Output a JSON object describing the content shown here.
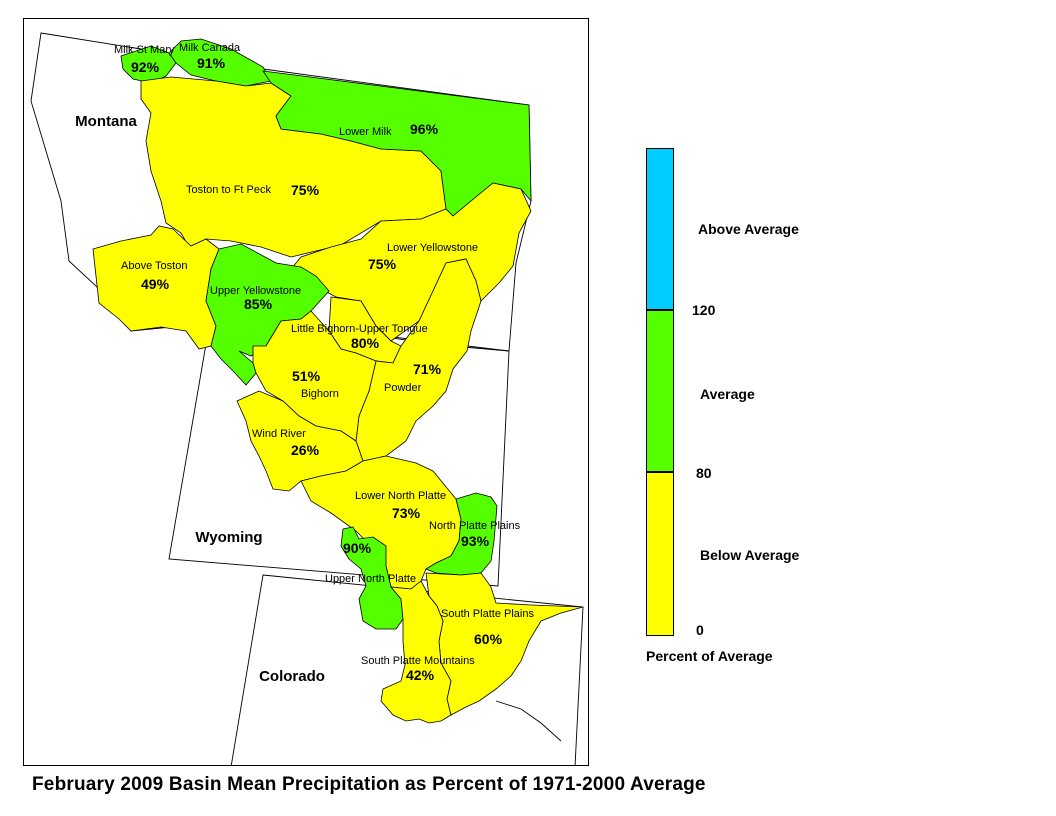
{
  "title": "February 2009 Basin Mean Precipitation as Percent of 1971-2000 Average",
  "colors": {
    "above": "#00CCFF",
    "average": "#55FF00",
    "below": "#FFFF00",
    "outline": "#000000",
    "background": "#FFFFFF"
  },
  "legend": {
    "title": "Percent of Average",
    "classes": [
      {
        "label": "Above Average",
        "min": 120,
        "color": "#00CCFF"
      },
      {
        "label": "Average",
        "min": 80,
        "max": 120,
        "color": "#55FF00"
      },
      {
        "label": "Below Average",
        "min": 0,
        "max": 80,
        "color": "#FFFF00"
      }
    ],
    "breaks": [
      "120",
      "80",
      "0"
    ]
  },
  "states": [
    "Montana",
    "Wyoming",
    "Colorado"
  ],
  "basins": [
    {
      "id": "milk-st-mary",
      "name": "Milk St Mary",
      "pct": "92%",
      "category": "Average"
    },
    {
      "id": "milk-canada",
      "name": "Milk Canada",
      "pct": "91%",
      "category": "Average"
    },
    {
      "id": "lower-milk",
      "name": "Lower Milk",
      "pct": "96%",
      "category": "Average"
    },
    {
      "id": "toston-ft-peck",
      "name": "Toston to Ft Peck",
      "pct": "75%",
      "category": "Below Average"
    },
    {
      "id": "above-toston",
      "name": "Above Toston",
      "pct": "49%",
      "category": "Below Average"
    },
    {
      "id": "upper-yellowstone",
      "name": "Upper Yellowstone",
      "pct": "85%",
      "category": "Average"
    },
    {
      "id": "lower-yellowstone",
      "name": "Lower Yellowstone",
      "pct": "75%",
      "category": "Below Average"
    },
    {
      "id": "little-bighorn",
      "name": "Little Bighorn-Upper Tongue",
      "pct": "80%",
      "category": "Below Average"
    },
    {
      "id": "bighorn",
      "name": "Bighorn",
      "pct": "51%",
      "category": "Below Average"
    },
    {
      "id": "powder",
      "name": "Powder",
      "pct": "71%",
      "category": "Below Average"
    },
    {
      "id": "wind-river",
      "name": "Wind River",
      "pct": "26%",
      "category": "Below Average"
    },
    {
      "id": "lower-north-platte",
      "name": "Lower North Platte",
      "pct": "73%",
      "category": "Below Average"
    },
    {
      "id": "north-platte-plains",
      "name": "North Platte Plains",
      "pct": "93%",
      "category": "Average"
    },
    {
      "id": "upper-north-platte",
      "name": "Upper North Platte",
      "pct": "90%",
      "category": "Average"
    },
    {
      "id": "south-platte-plains",
      "name": "South Platte Plains",
      "pct": "60%",
      "category": "Below Average"
    },
    {
      "id": "south-platte-mountains",
      "name": "South Platte Mountains",
      "pct": "42%",
      "category": "Below Average"
    }
  ]
}
